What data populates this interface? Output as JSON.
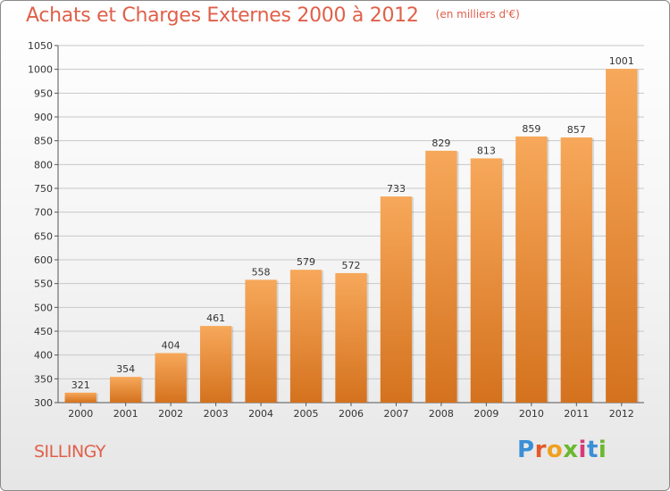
{
  "header": {
    "title": "Achats et Charges Externes 2000 à 2012",
    "subtitle": "(en milliers d'€)"
  },
  "footer": {
    "place": "SILLINGY",
    "logo_letters": [
      {
        "char": "P",
        "color": "#3a8fd6"
      },
      {
        "char": "r",
        "color": "#e25a2a"
      },
      {
        "char": "o",
        "color": "#f0a020"
      },
      {
        "char": "x",
        "color": "#6ab82e"
      },
      {
        "char": "i",
        "color": "#d63a7a"
      },
      {
        "char": "t",
        "color": "#3a8fd6"
      },
      {
        "char": "i",
        "color": "#6ab82e"
      }
    ]
  },
  "colors": {
    "bar_light": "#f7a85a",
    "bar_dark": "#d4721e",
    "grid": "#c8c8c8",
    "title": "#e0604a"
  },
  "chart_data": {
    "type": "bar",
    "title": "Achats et Charges Externes 2000 à 2012",
    "subtitle": "(en milliers d'€)",
    "xlabel": "",
    "ylabel": "",
    "categories": [
      "2000",
      "2001",
      "2002",
      "2003",
      "2004",
      "2005",
      "2006",
      "2007",
      "2008",
      "2009",
      "2010",
      "2011",
      "2012"
    ],
    "values": [
      321,
      354,
      404,
      461,
      558,
      579,
      572,
      733,
      829,
      813,
      859,
      857,
      1001
    ],
    "value_labels": [
      "321",
      "354",
      "404",
      "461",
      "558",
      "579",
      "572",
      "733",
      "829",
      "813",
      "859",
      "857",
      "1001"
    ],
    "ylim": [
      300,
      1050
    ],
    "yticks": [
      300,
      350,
      400,
      450,
      500,
      550,
      600,
      650,
      700,
      750,
      800,
      850,
      900,
      950,
      1000,
      1050
    ],
    "grid": true,
    "legend": "none"
  }
}
